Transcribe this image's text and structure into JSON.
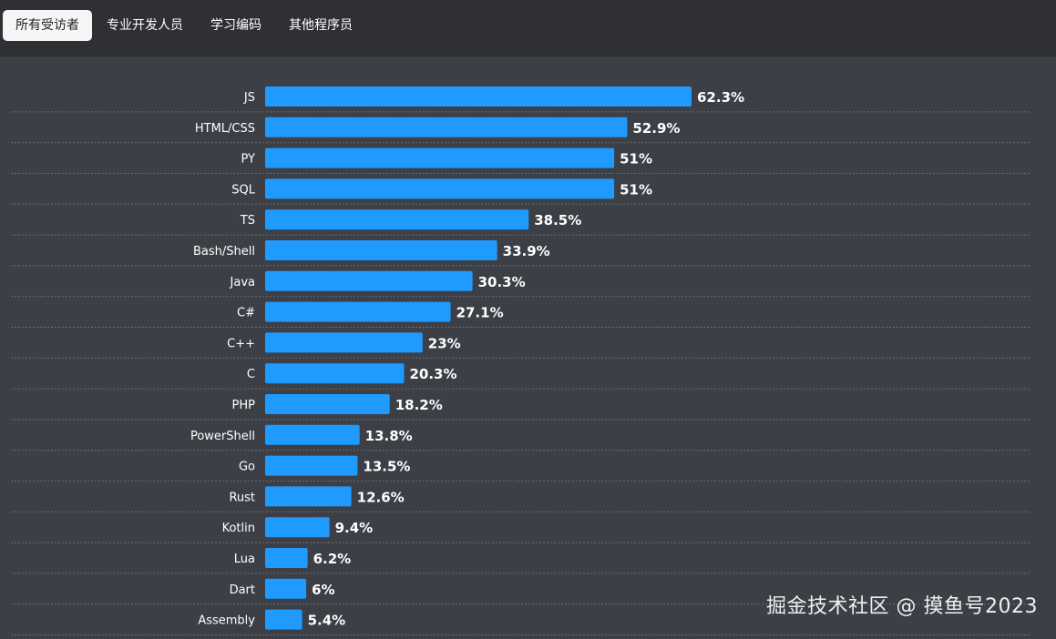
{
  "tabs": [
    {
      "label": "所有受访者",
      "active": true
    },
    {
      "label": "专业开发人员",
      "active": false
    },
    {
      "label": "学习编码",
      "active": false
    },
    {
      "label": "其他程序员",
      "active": false
    }
  ],
  "colors": {
    "bar": "#1f9bff",
    "label": "#ffffff",
    "grid": "#6a6d72",
    "background": "#3c3f45",
    "topbar": "#2e3034"
  },
  "watermark": "掘金技术社区 @ 摸鱼号2023",
  "chart_data": {
    "type": "bar",
    "orientation": "horizontal",
    "unit": "%",
    "xlim": [
      0,
      62.3
    ],
    "categories": [
      "JS",
      "HTML/CSS",
      "PY",
      "SQL",
      "TS",
      "Bash/Shell",
      "Java",
      "C#",
      "C++",
      "C",
      "PHP",
      "PowerShell",
      "Go",
      "Rust",
      "Kotlin",
      "Lua",
      "Dart",
      "Assembly"
    ],
    "values": [
      62.3,
      52.9,
      51,
      51,
      38.5,
      33.9,
      30.3,
      27.1,
      23,
      20.3,
      18.2,
      13.8,
      13.5,
      12.6,
      9.4,
      6.2,
      6,
      5.4
    ],
    "value_labels": [
      "62.3%",
      "52.9%",
      "51%",
      "51%",
      "38.5%",
      "33.9%",
      "30.3%",
      "27.1%",
      "23%",
      "20.3%",
      "18.2%",
      "13.8%",
      "13.5%",
      "12.6%",
      "9.4%",
      "6.2%",
      "6%",
      "5.4%"
    ],
    "title": "",
    "xlabel": "",
    "ylabel": ""
  }
}
